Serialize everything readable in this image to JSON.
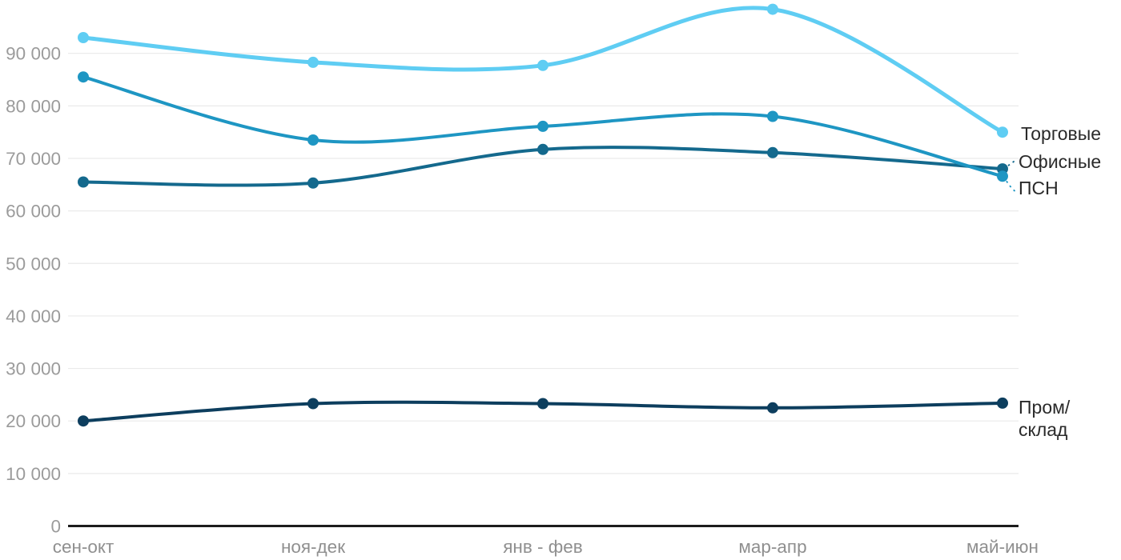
{
  "chart_data": {
    "type": "line",
    "title": "",
    "xlabel": "",
    "ylabel": "",
    "categories": [
      "сен-окт",
      "ноя-дек",
      "янв - фев",
      "мар-апр",
      "май-июн"
    ],
    "series": [
      {
        "name": "Торговые",
        "color": "#5fcdf3",
        "values": [
          93000,
          88300,
          87700,
          98400,
          75000
        ],
        "label_lines": [
          "Торговые"
        ]
      },
      {
        "name": "Офисные",
        "color": "#14698d",
        "values": [
          65500,
          65300,
          71700,
          71100,
          68000
        ],
        "label_lines": [
          "Офисные"
        ]
      },
      {
        "name": "ПСН",
        "color": "#1e96c3",
        "values": [
          85500,
          73500,
          76100,
          78000,
          66600
        ],
        "label_lines": [
          "ПСН"
        ]
      },
      {
        "name": "Пром/склад",
        "color": "#0d3e5e",
        "values": [
          20000,
          23300,
          23300,
          22500,
          23400
        ],
        "label_lines": [
          "Пром/",
          "склад"
        ]
      }
    ],
    "y_ticks": [
      {
        "value": 0,
        "label": "0"
      },
      {
        "value": 10000,
        "label": "10 000"
      },
      {
        "value": 20000,
        "label": "20 000"
      },
      {
        "value": 30000,
        "label": "30 000"
      },
      {
        "value": 40000,
        "label": "40 000"
      },
      {
        "value": 50000,
        "label": "50 000"
      },
      {
        "value": 60000,
        "label": "60 000"
      },
      {
        "value": 70000,
        "label": "70 000"
      },
      {
        "value": 80000,
        "label": "80 000"
      },
      {
        "value": 90000,
        "label": "90 000"
      }
    ],
    "ylim": [
      0,
      100000
    ],
    "grid": "horizontal-only",
    "legend_position": "end-of-line-labels-right",
    "colors": {
      "gridline": "#eaeaea",
      "zero_axis": "#1c1c1c",
      "y_tick_text": "#9b9b9b",
      "x_tick_text": "#8f8f8f",
      "series_label_text": "#2a2a2a"
    }
  }
}
